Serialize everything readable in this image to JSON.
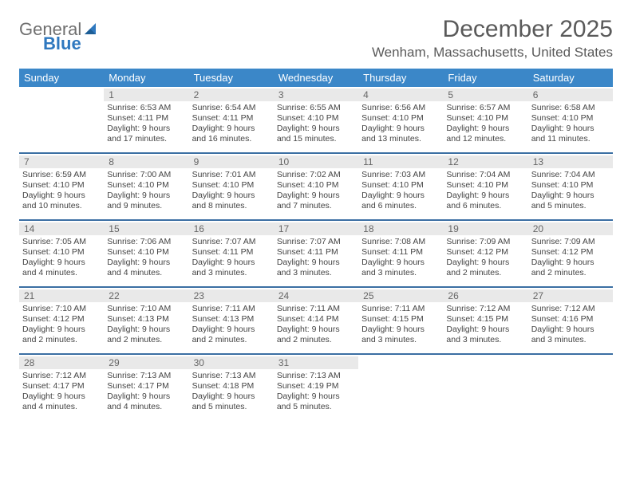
{
  "logo": {
    "text_a": "General",
    "text_b": "Blue"
  },
  "title": "December 2025",
  "location": "Wenham, Massachusetts, United States",
  "header_bg": "#3b87c8",
  "header_fg": "#ffffff",
  "week_border": "#3b6fa3",
  "daynum_bg": "#e9e9e9",
  "days": [
    "Sunday",
    "Monday",
    "Tuesday",
    "Wednesday",
    "Thursday",
    "Friday",
    "Saturday"
  ],
  "weeks": [
    [
      {
        "n": "",
        "sr": "",
        "ss": "",
        "d1": "",
        "d2": ""
      },
      {
        "n": "1",
        "sr": "Sunrise: 6:53 AM",
        "ss": "Sunset: 4:11 PM",
        "d1": "Daylight: 9 hours",
        "d2": "and 17 minutes."
      },
      {
        "n": "2",
        "sr": "Sunrise: 6:54 AM",
        "ss": "Sunset: 4:11 PM",
        "d1": "Daylight: 9 hours",
        "d2": "and 16 minutes."
      },
      {
        "n": "3",
        "sr": "Sunrise: 6:55 AM",
        "ss": "Sunset: 4:10 PM",
        "d1": "Daylight: 9 hours",
        "d2": "and 15 minutes."
      },
      {
        "n": "4",
        "sr": "Sunrise: 6:56 AM",
        "ss": "Sunset: 4:10 PM",
        "d1": "Daylight: 9 hours",
        "d2": "and 13 minutes."
      },
      {
        "n": "5",
        "sr": "Sunrise: 6:57 AM",
        "ss": "Sunset: 4:10 PM",
        "d1": "Daylight: 9 hours",
        "d2": "and 12 minutes."
      },
      {
        "n": "6",
        "sr": "Sunrise: 6:58 AM",
        "ss": "Sunset: 4:10 PM",
        "d1": "Daylight: 9 hours",
        "d2": "and 11 minutes."
      }
    ],
    [
      {
        "n": "7",
        "sr": "Sunrise: 6:59 AM",
        "ss": "Sunset: 4:10 PM",
        "d1": "Daylight: 9 hours",
        "d2": "and 10 minutes."
      },
      {
        "n": "8",
        "sr": "Sunrise: 7:00 AM",
        "ss": "Sunset: 4:10 PM",
        "d1": "Daylight: 9 hours",
        "d2": "and 9 minutes."
      },
      {
        "n": "9",
        "sr": "Sunrise: 7:01 AM",
        "ss": "Sunset: 4:10 PM",
        "d1": "Daylight: 9 hours",
        "d2": "and 8 minutes."
      },
      {
        "n": "10",
        "sr": "Sunrise: 7:02 AM",
        "ss": "Sunset: 4:10 PM",
        "d1": "Daylight: 9 hours",
        "d2": "and 7 minutes."
      },
      {
        "n": "11",
        "sr": "Sunrise: 7:03 AM",
        "ss": "Sunset: 4:10 PM",
        "d1": "Daylight: 9 hours",
        "d2": "and 6 minutes."
      },
      {
        "n": "12",
        "sr": "Sunrise: 7:04 AM",
        "ss": "Sunset: 4:10 PM",
        "d1": "Daylight: 9 hours",
        "d2": "and 6 minutes."
      },
      {
        "n": "13",
        "sr": "Sunrise: 7:04 AM",
        "ss": "Sunset: 4:10 PM",
        "d1": "Daylight: 9 hours",
        "d2": "and 5 minutes."
      }
    ],
    [
      {
        "n": "14",
        "sr": "Sunrise: 7:05 AM",
        "ss": "Sunset: 4:10 PM",
        "d1": "Daylight: 9 hours",
        "d2": "and 4 minutes."
      },
      {
        "n": "15",
        "sr": "Sunrise: 7:06 AM",
        "ss": "Sunset: 4:10 PM",
        "d1": "Daylight: 9 hours",
        "d2": "and 4 minutes."
      },
      {
        "n": "16",
        "sr": "Sunrise: 7:07 AM",
        "ss": "Sunset: 4:11 PM",
        "d1": "Daylight: 9 hours",
        "d2": "and 3 minutes."
      },
      {
        "n": "17",
        "sr": "Sunrise: 7:07 AM",
        "ss": "Sunset: 4:11 PM",
        "d1": "Daylight: 9 hours",
        "d2": "and 3 minutes."
      },
      {
        "n": "18",
        "sr": "Sunrise: 7:08 AM",
        "ss": "Sunset: 4:11 PM",
        "d1": "Daylight: 9 hours",
        "d2": "and 3 minutes."
      },
      {
        "n": "19",
        "sr": "Sunrise: 7:09 AM",
        "ss": "Sunset: 4:12 PM",
        "d1": "Daylight: 9 hours",
        "d2": "and 2 minutes."
      },
      {
        "n": "20",
        "sr": "Sunrise: 7:09 AM",
        "ss": "Sunset: 4:12 PM",
        "d1": "Daylight: 9 hours",
        "d2": "and 2 minutes."
      }
    ],
    [
      {
        "n": "21",
        "sr": "Sunrise: 7:10 AM",
        "ss": "Sunset: 4:12 PM",
        "d1": "Daylight: 9 hours",
        "d2": "and 2 minutes."
      },
      {
        "n": "22",
        "sr": "Sunrise: 7:10 AM",
        "ss": "Sunset: 4:13 PM",
        "d1": "Daylight: 9 hours",
        "d2": "and 2 minutes."
      },
      {
        "n": "23",
        "sr": "Sunrise: 7:11 AM",
        "ss": "Sunset: 4:13 PM",
        "d1": "Daylight: 9 hours",
        "d2": "and 2 minutes."
      },
      {
        "n": "24",
        "sr": "Sunrise: 7:11 AM",
        "ss": "Sunset: 4:14 PM",
        "d1": "Daylight: 9 hours",
        "d2": "and 2 minutes."
      },
      {
        "n": "25",
        "sr": "Sunrise: 7:11 AM",
        "ss": "Sunset: 4:15 PM",
        "d1": "Daylight: 9 hours",
        "d2": "and 3 minutes."
      },
      {
        "n": "26",
        "sr": "Sunrise: 7:12 AM",
        "ss": "Sunset: 4:15 PM",
        "d1": "Daylight: 9 hours",
        "d2": "and 3 minutes."
      },
      {
        "n": "27",
        "sr": "Sunrise: 7:12 AM",
        "ss": "Sunset: 4:16 PM",
        "d1": "Daylight: 9 hours",
        "d2": "and 3 minutes."
      }
    ],
    [
      {
        "n": "28",
        "sr": "Sunrise: 7:12 AM",
        "ss": "Sunset: 4:17 PM",
        "d1": "Daylight: 9 hours",
        "d2": "and 4 minutes."
      },
      {
        "n": "29",
        "sr": "Sunrise: 7:13 AM",
        "ss": "Sunset: 4:17 PM",
        "d1": "Daylight: 9 hours",
        "d2": "and 4 minutes."
      },
      {
        "n": "30",
        "sr": "Sunrise: 7:13 AM",
        "ss": "Sunset: 4:18 PM",
        "d1": "Daylight: 9 hours",
        "d2": "and 5 minutes."
      },
      {
        "n": "31",
        "sr": "Sunrise: 7:13 AM",
        "ss": "Sunset: 4:19 PM",
        "d1": "Daylight: 9 hours",
        "d2": "and 5 minutes."
      },
      {
        "n": "",
        "sr": "",
        "ss": "",
        "d1": "",
        "d2": ""
      },
      {
        "n": "",
        "sr": "",
        "ss": "",
        "d1": "",
        "d2": ""
      },
      {
        "n": "",
        "sr": "",
        "ss": "",
        "d1": "",
        "d2": ""
      }
    ]
  ]
}
